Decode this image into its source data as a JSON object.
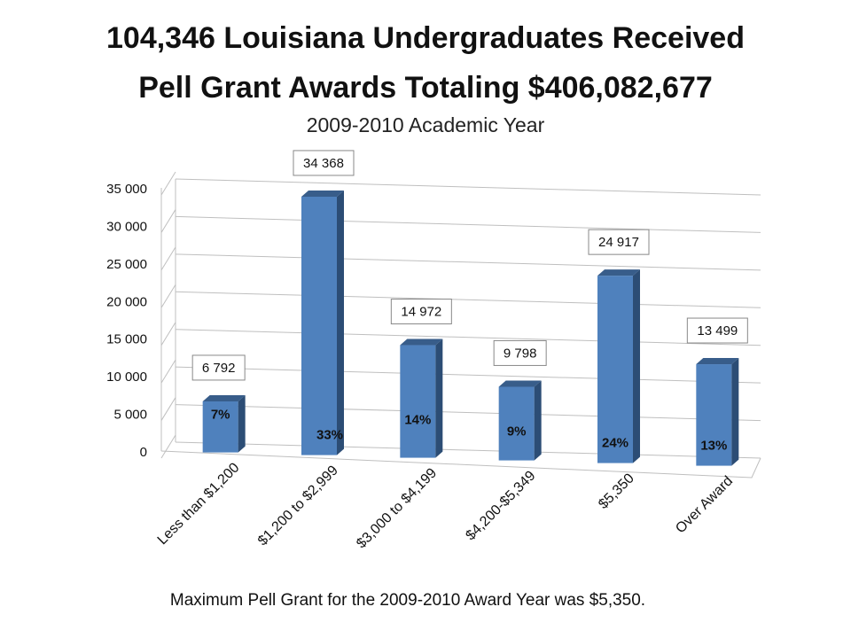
{
  "header": {
    "title_line1": "104,346 Louisiana Undergraduates Received",
    "title_line2": "Pell Grant Awards Totaling $406,082,677",
    "subtitle": "2009-2010 Academic Year"
  },
  "footnote": "Maximum Pell Grant for the 2009-2010 Award Year was $5,350.",
  "colors": {
    "bar_front": "#4F81BD",
    "bar_side": "#2C4D75",
    "bar_top": "#385D8A",
    "grid": "#BFBFBF"
  },
  "chart_data": {
    "type": "bar",
    "categories": [
      "Less than $1,200",
      "$1,200 to $2,999",
      "$3,000 to $4,199",
      "$4,200-$5,349",
      "$5,350",
      "Over Award"
    ],
    "values": [
      6792,
      34368,
      14972,
      9798,
      24917,
      13499
    ],
    "value_labels": [
      "6 792",
      "34 368",
      "14 972",
      "9 798",
      "24 917",
      "13 499"
    ],
    "percent_labels": [
      "7%",
      "33%",
      "14%",
      "9%",
      "24%",
      "13%"
    ],
    "y_ticks": [
      "0",
      "5 000",
      "10 000",
      "15 000",
      "20 000",
      "25 000",
      "30 000",
      "35 000"
    ],
    "ylim": [
      0,
      35000
    ],
    "grid": true
  }
}
